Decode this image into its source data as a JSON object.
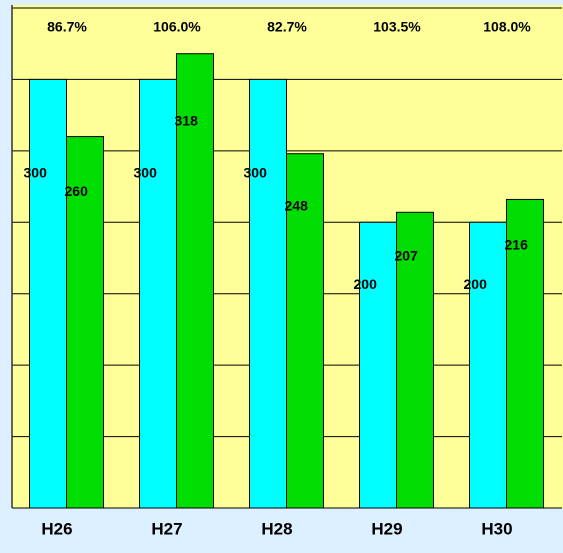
{
  "chart_data": {
    "type": "bar",
    "categories": [
      "H26",
      "H27",
      "H28",
      "H29",
      "H30"
    ],
    "annotations": [
      "86.7%",
      "106.0%",
      "82.7%",
      "103.5%",
      "108.0%"
    ],
    "series": [
      {
        "color": "#00ffff",
        "values": [
          300,
          300,
          300,
          200,
          200
        ]
      },
      {
        "color": "#00dd00",
        "values": [
          260,
          318,
          248,
          207,
          216
        ]
      }
    ],
    "ylim": [
      0,
      350
    ],
    "yticks": [
      0,
      50,
      100,
      150,
      200,
      250,
      300,
      350
    ],
    "grid": true
  }
}
